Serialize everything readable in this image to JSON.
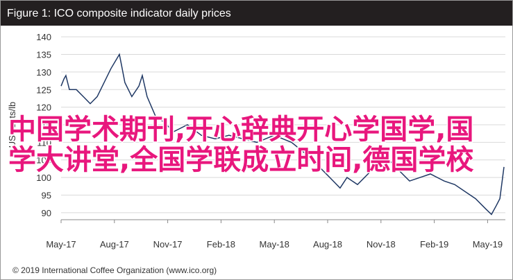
{
  "chart_data": {
    "type": "line",
    "title": "Figure 1: ICO composite indicator daily prices",
    "ylabel": "US cents/lb",
    "footer": "© 2019 International Coffee Organization (www.ico.org)",
    "x": [
      0,
      0.16,
      0.27,
      0.47,
      0.86,
      1.25,
      1.64,
      2.03,
      2.42,
      2.81,
      3.28,
      3.4,
      3.59,
      3.98,
      4.38,
      4.57,
      4.84,
      5.35,
      5.74,
      6.33,
      7.11,
      7.89,
      8.67,
      9.45,
      10.23,
      11.02,
      11.99,
      12.97,
      13.95,
      14.53,
      15.12,
      15.7,
      16.09,
      16.68,
      17.27,
      17.85,
      18.44,
      19.02,
      19.61,
      20.2,
      20.78,
      21.56,
      22.15,
      22.73,
      23.32,
      23.91,
      24.22,
      24.49,
      24.69,
      24.92
    ],
    "series": [
      {
        "name": "ICO composite",
        "color": "#1f3864",
        "values": [
          126,
          128,
          129,
          125,
          125,
          123,
          121,
          123,
          127,
          131,
          135,
          132,
          127,
          123,
          126,
          129,
          123,
          117,
          116,
          113,
          115,
          112,
          111,
          112,
          111,
          110,
          112,
          110,
          106,
          103,
          100,
          97,
          100,
          98,
          101,
          104,
          105,
          102,
          99,
          100,
          101,
          99,
          98,
          96,
          94,
          91,
          89.5,
          92,
          94,
          103
        ]
      }
    ],
    "xlim": [
      0,
      25
    ],
    "xticks": [
      {
        "value": 0,
        "label": "May-17"
      },
      {
        "value": 3,
        "label": "Aug-17"
      },
      {
        "value": 6,
        "label": "Nov-17"
      },
      {
        "value": 9,
        "label": "Feb-18"
      },
      {
        "value": 12,
        "label": "May-18"
      },
      {
        "value": 15,
        "label": "Aug-18"
      },
      {
        "value": 18,
        "label": "Nov-18"
      },
      {
        "value": 21,
        "label": "Feb-19"
      },
      {
        "value": 24,
        "label": "May-19"
      }
    ],
    "ylim": [
      88,
      142
    ],
    "yticks": [
      90,
      95,
      100,
      105,
      110,
      115,
      120,
      125,
      130,
      135,
      140
    ],
    "grid": true
  },
  "overlay": [
    "中国学术期刊,开心辞典开心学国学,国",
    "学大讲堂,全国学联成立时间,德国学校"
  ]
}
